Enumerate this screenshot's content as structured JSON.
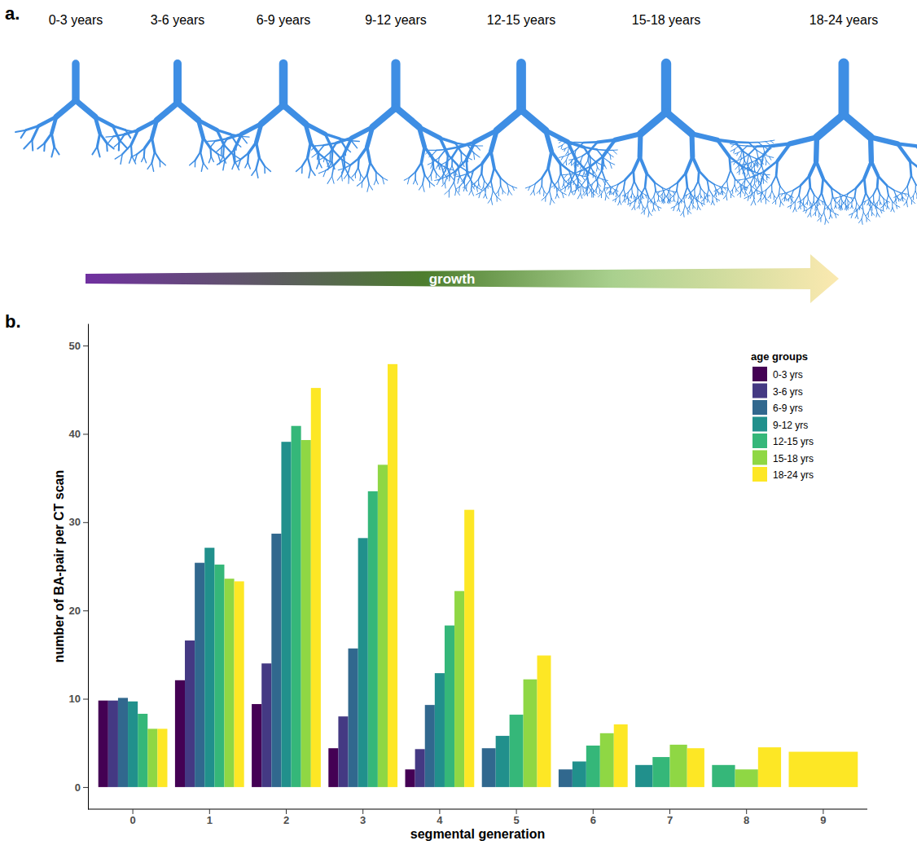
{
  "panel_a": {
    "letter": "a.",
    "age_labels": [
      "0-3 years",
      "3-6 years",
      "6-9 years",
      "9-12 years",
      "12-15 years",
      "15-18 years",
      "18-24 years"
    ],
    "arrow_label": "growth"
  },
  "panel_b": {
    "letter": "b."
  },
  "chart_data": {
    "type": "bar",
    "x_label": "segmental generation",
    "y_label": "number of BA-pair per CT scan",
    "categories": [
      "0",
      "1",
      "2",
      "3",
      "4",
      "5",
      "6",
      "7",
      "8",
      "9"
    ],
    "legend_title": "age groups",
    "legend": "top-right",
    "grid": false,
    "ylim": [
      -2.5,
      52.5
    ],
    "yticks": [
      0,
      10,
      20,
      30,
      40,
      50
    ],
    "series": [
      {
        "name": "0-3 yrs",
        "color": "#440154",
        "values": [
          9.8,
          12.1,
          9.4,
          4.4,
          2.0,
          null,
          null,
          null,
          null,
          null
        ]
      },
      {
        "name": "3-6 yrs",
        "color": "#443983",
        "values": [
          9.8,
          16.6,
          14.0,
          8.0,
          4.3,
          null,
          null,
          null,
          null,
          null
        ]
      },
      {
        "name": "6-9 yrs",
        "color": "#31688e",
        "values": [
          10.1,
          25.4,
          28.7,
          15.7,
          9.3,
          4.4,
          2.0,
          null,
          null,
          null
        ]
      },
      {
        "name": "9-12 yrs",
        "color": "#21908c",
        "values": [
          9.7,
          27.1,
          39.1,
          28.2,
          12.9,
          5.8,
          2.9,
          2.5,
          null,
          null
        ]
      },
      {
        "name": "12-15 yrs",
        "color": "#35b779",
        "values": [
          8.3,
          25.2,
          40.9,
          33.5,
          18.3,
          8.2,
          4.7,
          3.4,
          2.5,
          null
        ]
      },
      {
        "name": "15-18 yrs",
        "color": "#8fd744",
        "values": [
          6.6,
          23.6,
          39.3,
          36.5,
          22.2,
          12.2,
          6.1,
          4.8,
          2.0,
          null
        ]
      },
      {
        "name": "18-24 yrs",
        "color": "#fde725",
        "values": [
          6.6,
          23.3,
          45.2,
          47.9,
          31.4,
          14.9,
          7.1,
          4.4,
          4.5,
          4.0
        ]
      }
    ]
  }
}
